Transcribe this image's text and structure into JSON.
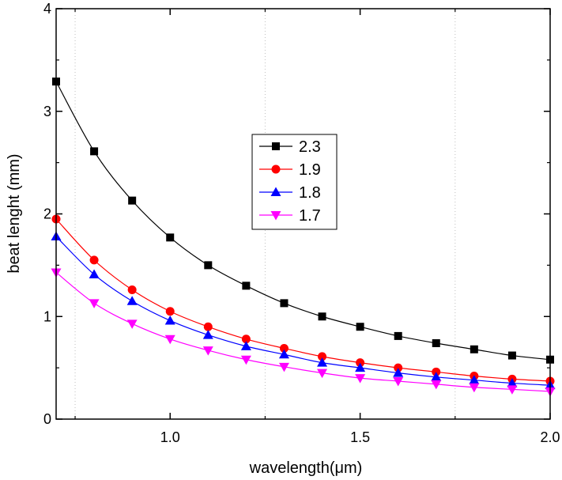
{
  "chart_data": {
    "type": "line",
    "xlabel": "wavelength(μm)",
    "ylabel": "beat lenght (mm)",
    "xlim": [
      0.7,
      2.0
    ],
    "ylim": [
      0,
      4
    ],
    "x_ticks": [
      "1.0",
      "1.5",
      "2.0"
    ],
    "x_tick_values": [
      1.0,
      1.5,
      2.0
    ],
    "y_ticks": [
      "0",
      "1",
      "2",
      "3",
      "4"
    ],
    "y_tick_values": [
      0,
      1,
      2,
      3,
      4
    ],
    "x_gridlines": [
      0.75,
      1.25,
      1.75
    ],
    "grid": "dotted vertical lines",
    "legend_position": "upper-center",
    "x": [
      0.7,
      0.8,
      0.9,
      1.0,
      1.1,
      1.2,
      1.3,
      1.4,
      1.5,
      1.6,
      1.7,
      1.8,
      1.9,
      2.0
    ],
    "series": [
      {
        "name": "2.3",
        "color": "#000000",
        "marker": "square",
        "values": [
          3.29,
          2.61,
          2.13,
          1.77,
          1.5,
          1.3,
          1.13,
          1.0,
          0.9,
          0.81,
          0.74,
          0.68,
          0.62,
          0.58
        ]
      },
      {
        "name": "1.9",
        "color": "#ff0000",
        "marker": "circle",
        "values": [
          1.95,
          1.55,
          1.26,
          1.05,
          0.9,
          0.78,
          0.69,
          0.61,
          0.55,
          0.5,
          0.46,
          0.42,
          0.39,
          0.37
        ]
      },
      {
        "name": "1.8",
        "color": "#0000ff",
        "marker": "triangle-up",
        "values": [
          1.78,
          1.41,
          1.15,
          0.96,
          0.82,
          0.71,
          0.63,
          0.55,
          0.5,
          0.45,
          0.41,
          0.38,
          0.35,
          0.33
        ]
      },
      {
        "name": "1.7",
        "color": "#ff00ff",
        "marker": "triangle-down",
        "values": [
          1.43,
          1.13,
          0.93,
          0.78,
          0.67,
          0.58,
          0.51,
          0.45,
          0.4,
          0.37,
          0.34,
          0.31,
          0.29,
          0.27
        ]
      }
    ]
  }
}
